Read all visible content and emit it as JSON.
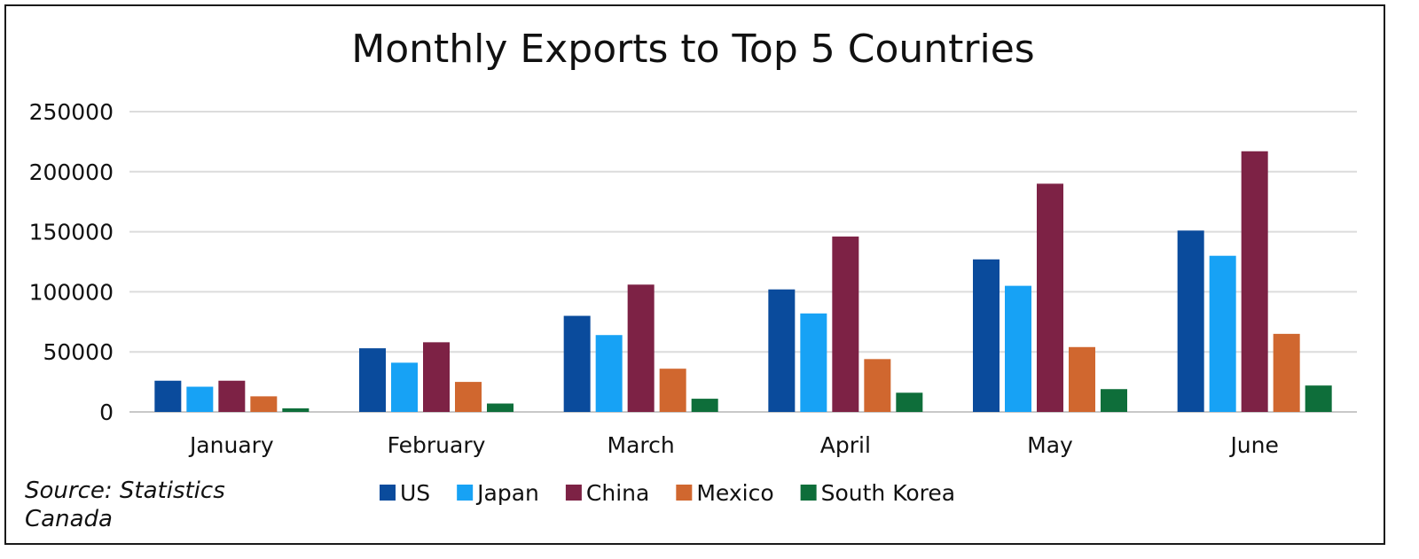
{
  "chart_data": {
    "type": "bar",
    "title": "Monthly Exports to Top 5 Countries",
    "source": "Source: Statistics Canada",
    "categories": [
      "January",
      "February",
      "March",
      "April",
      "May",
      "June"
    ],
    "ylim": [
      0,
      250000
    ],
    "yticks": [
      "0",
      "50000",
      "100000",
      "150000",
      "200000",
      "250000"
    ],
    "grid": true,
    "legend_position": "bottom",
    "series": [
      {
        "name": "US",
        "color": "#0a4b9c",
        "values": [
          26000,
          53000,
          80000,
          102000,
          127000,
          151000
        ]
      },
      {
        "name": "Japan",
        "color": "#17a2f5",
        "values": [
          21000,
          41000,
          64000,
          82000,
          105000,
          130000
        ]
      },
      {
        "name": "China",
        "color": "#7d2245",
        "values": [
          26000,
          58000,
          106000,
          146000,
          190000,
          217000
        ]
      },
      {
        "name": "Mexico",
        "color": "#d0672f",
        "values": [
          13000,
          25000,
          36000,
          44000,
          54000,
          65000
        ]
      },
      {
        "name": "South Korea",
        "color": "#0e6e3a",
        "values": [
          3000,
          7000,
          11000,
          16000,
          19000,
          22000
        ]
      }
    ]
  }
}
